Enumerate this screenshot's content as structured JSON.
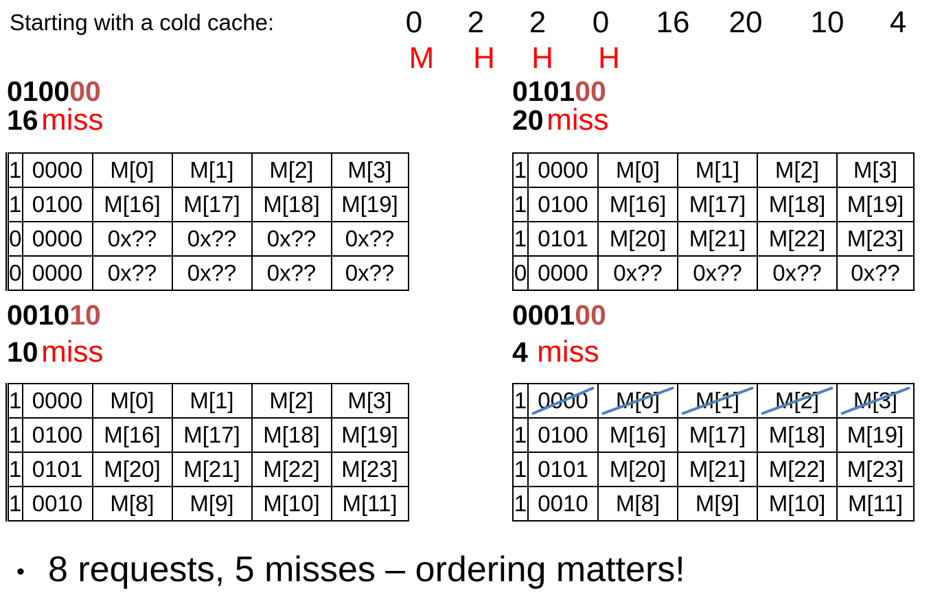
{
  "intro": "Starting with a cold cache:",
  "sequence": [
    "0",
    "2",
    "2",
    "0",
    "16",
    "20",
    "10",
    "4"
  ],
  "results": [
    "M",
    "H",
    "H",
    "H"
  ],
  "panels": [
    {
      "addr_hi": "0100",
      "addr_lo": "00",
      "number": "16",
      "status": "miss",
      "rows": [
        [
          "1",
          "0000",
          "M[0]",
          "M[1]",
          "M[2]",
          "M[3]"
        ],
        [
          "1",
          "0100",
          "M[16]",
          "M[17]",
          "M[18]",
          "M[19]"
        ],
        [
          "0",
          "0000",
          "0x??",
          "0x??",
          "0x??",
          "0x??"
        ],
        [
          "0",
          "0000",
          "0x??",
          "0x??",
          "0x??",
          "0x??"
        ]
      ]
    },
    {
      "addr_hi": "0101",
      "addr_lo": "00",
      "number": "20",
      "status": "miss",
      "rows": [
        [
          "1",
          "0000",
          "M[0]",
          "M[1]",
          "M[2]",
          "M[3]"
        ],
        [
          "1",
          "0100",
          "M[16]",
          "M[17]",
          "M[18]",
          "M[19]"
        ],
        [
          "1",
          "0101",
          "M[20]",
          "M[21]",
          "M[22]",
          "M[23]"
        ],
        [
          "0",
          "0000",
          "0x??",
          "0x??",
          "0x??",
          "0x??"
        ]
      ]
    },
    {
      "addr_hi": "0010",
      "addr_lo": "10",
      "number": "10",
      "status": "miss",
      "rows": [
        [
          "1",
          "0000",
          "M[0]",
          "M[1]",
          "M[2]",
          "M[3]"
        ],
        [
          "1",
          "0100",
          "M[16]",
          "M[17]",
          "M[18]",
          "M[19]"
        ],
        [
          "1",
          "0101",
          "M[20]",
          "M[21]",
          "M[22]",
          "M[23]"
        ],
        [
          "1",
          "0010",
          "M[8]",
          "M[9]",
          "M[10]",
          "M[11]"
        ]
      ]
    },
    {
      "addr_hi": "0001",
      "addr_lo": "00",
      "number": "4",
      "status": "miss",
      "rows": [
        [
          "1",
          "0000",
          "M[0]",
          "M[1]",
          "M[2]",
          "M[3]"
        ],
        [
          "1",
          "0100",
          "M[16]",
          "M[17]",
          "M[18]",
          "M[19]"
        ],
        [
          "1",
          "0101",
          "M[20]",
          "M[21]",
          "M[22]",
          "M[23]"
        ],
        [
          "1",
          "0010",
          "M[8]",
          "M[9]",
          "M[10]",
          "M[11]"
        ]
      ]
    }
  ],
  "summary": "8 requests, 5 misses – ordering matters!",
  "colors": {
    "miss": "#ff0000",
    "offset_bits": "#c0504d",
    "strike": "#4f81bd"
  }
}
